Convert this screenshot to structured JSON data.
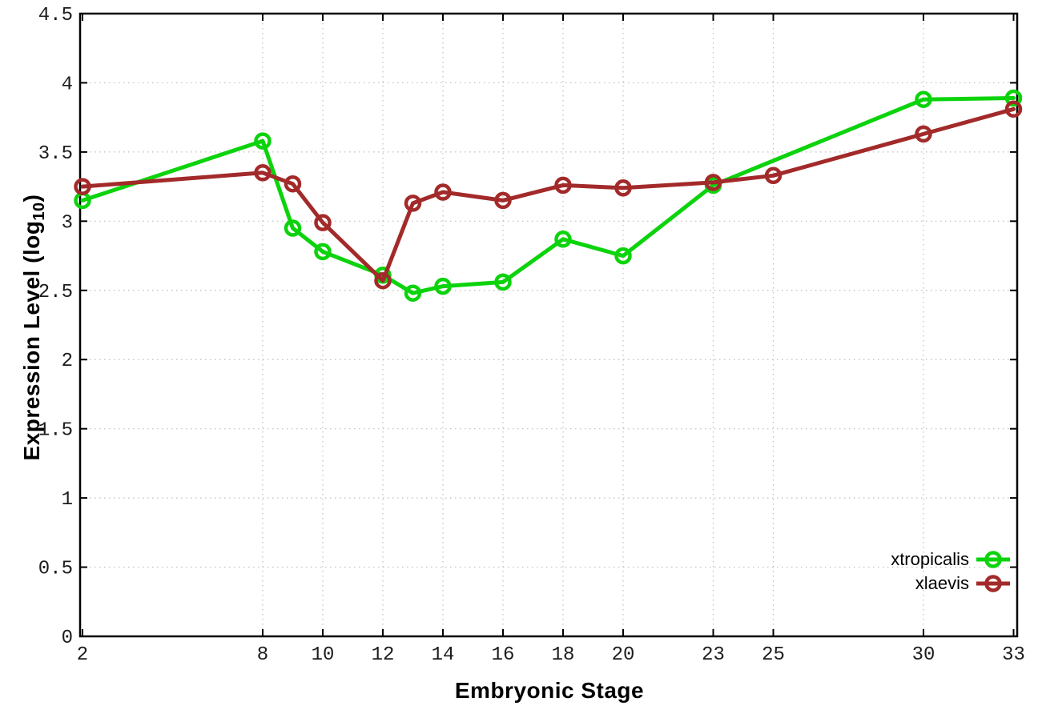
{
  "figure": {
    "background": "#ffffff",
    "border_color": "#000000",
    "grid_color": "#bdbdbd",
    "tick_label_color": "#1c1c1c"
  },
  "chart_data": {
    "type": "line",
    "title": "",
    "xlabel": "Embryonic Stage",
    "ylabel": "Expression Level (log10)",
    "ylabel_parts": {
      "main": "Expression Level (log",
      "sub": "10",
      "end": ")"
    },
    "xlim": [
      2,
      33
    ],
    "ylim": [
      0,
      4.5
    ],
    "x_ticks": [
      2,
      8,
      10,
      12,
      14,
      16,
      18,
      20,
      23,
      25,
      30,
      33
    ],
    "y_ticks": [
      0,
      0.5,
      1,
      1.5,
      2,
      2.5,
      3,
      3.5,
      4,
      4.5
    ],
    "y_tick_labels": [
      "0",
      "0.5",
      "1",
      "1.5",
      "2",
      "2.5",
      "3",
      "3.5",
      "4",
      "4.5"
    ],
    "grid": "dotted",
    "legend": {
      "position": "bottom-right",
      "entries": [
        "xtropicalis",
        "xlaevis"
      ]
    },
    "series": [
      {
        "name": "xtropicalis",
        "color": "#0cd30c",
        "marker": "open-circle",
        "points": [
          [
            2,
            3.15
          ],
          [
            8,
            3.58
          ],
          [
            9,
            2.95
          ],
          [
            10,
            2.78
          ],
          [
            12,
            2.61
          ],
          [
            13,
            2.48
          ],
          [
            14,
            2.53
          ],
          [
            16,
            2.56
          ],
          [
            18,
            2.87
          ],
          [
            20,
            2.75
          ],
          [
            23,
            3.26
          ],
          [
            30,
            3.88
          ],
          [
            33,
            3.89
          ]
        ]
      },
      {
        "name": "xlaevis",
        "color": "#a32a2a",
        "marker": "open-circle",
        "points": [
          [
            2,
            3.25
          ],
          [
            8,
            3.35
          ],
          [
            9,
            3.27
          ],
          [
            10,
            2.99
          ],
          [
            12,
            2.57
          ],
          [
            13,
            3.13
          ],
          [
            14,
            3.21
          ],
          [
            16,
            3.15
          ],
          [
            18,
            3.26
          ],
          [
            20,
            3.24
          ],
          [
            23,
            3.28
          ],
          [
            25,
            3.33
          ],
          [
            30,
            3.63
          ],
          [
            33,
            3.81
          ]
        ]
      }
    ]
  }
}
